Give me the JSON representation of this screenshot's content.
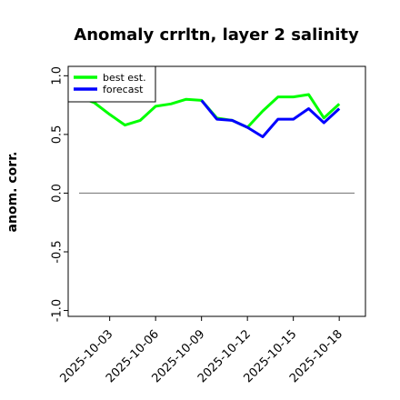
{
  "chart_data": {
    "type": "line",
    "title": "Anomaly crrltn, layer 2 salinity",
    "xlabel": "",
    "ylabel": "anom. corr.",
    "xlim": [
      "2025-10-01",
      "2025-10-19"
    ],
    "ylim": [
      -1.05,
      1.08
    ],
    "yticks": [
      1.0,
      0.5,
      0.0,
      -0.5,
      -1.0
    ],
    "ytick_labels": [
      "1.0",
      "0.5",
      "0.0",
      "-0.5",
      "-1.0"
    ],
    "xticks": [
      "2025-10-03",
      "2025-10-06",
      "2025-10-09",
      "2025-10-12",
      "2025-10-15",
      "2025-10-18"
    ],
    "xtick_labels": [
      {
        "text": "2025-10-03",
        "color": "#000000"
      },
      {
        "text": "2025-10-06",
        "color": "#000000"
      },
      {
        "text": "2025-10-09",
        "color": "#228B22"
      },
      {
        "text": "2025-10-12",
        "color": "#000000"
      },
      {
        "text": "2025-10-15",
        "color": "#000000"
      },
      {
        "text": "2025-10-18",
        "color": "#000000"
      }
    ],
    "reference_line": {
      "y": 0.0,
      "color": "#808080"
    },
    "grid": false,
    "legend_position": "top-left",
    "series": [
      {
        "name": "best est.",
        "color": "#00ff00",
        "x": [
          "2025-10-01",
          "2025-10-02",
          "2025-10-03",
          "2025-10-04",
          "2025-10-05",
          "2025-10-06",
          "2025-10-07",
          "2025-10-08",
          "2025-10-09",
          "2025-10-10",
          "2025-10-11",
          "2025-10-12",
          "2025-10-13",
          "2025-10-14",
          "2025-10-15",
          "2025-10-16",
          "2025-10-17",
          "2025-10-18"
        ],
        "values": [
          0.82,
          0.77,
          0.67,
          0.58,
          0.62,
          0.74,
          0.76,
          0.8,
          0.79,
          0.64,
          0.62,
          0.56,
          0.7,
          0.82,
          0.82,
          0.84,
          0.64,
          0.76
        ]
      },
      {
        "name": "forecast",
        "color": "#0000ff",
        "x": [
          "2025-10-09",
          "2025-10-10",
          "2025-10-11",
          "2025-10-12",
          "2025-10-13",
          "2025-10-14",
          "2025-10-15",
          "2025-10-16",
          "2025-10-17",
          "2025-10-18"
        ],
        "values": [
          0.79,
          0.63,
          0.62,
          0.56,
          0.48,
          0.63,
          0.63,
          0.72,
          0.6,
          0.72
        ]
      }
    ]
  }
}
